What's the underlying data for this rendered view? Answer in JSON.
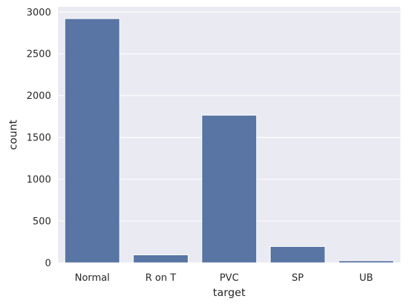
{
  "chart_data": {
    "type": "bar",
    "categories": [
      "Normal",
      "R on T",
      "PVC",
      "SP",
      "UB"
    ],
    "values": [
      2920,
      95,
      1765,
      195,
      25
    ],
    "title": "",
    "xlabel": "target",
    "ylabel": "count",
    "ylim": [
      0,
      3060
    ],
    "yticks": [
      0,
      500,
      1000,
      1500,
      2000,
      2500,
      3000
    ],
    "grid": true,
    "colors": {
      "bar": "#5875a4",
      "plot_background": "#eaeaf2",
      "grid": "#ffffff"
    }
  }
}
